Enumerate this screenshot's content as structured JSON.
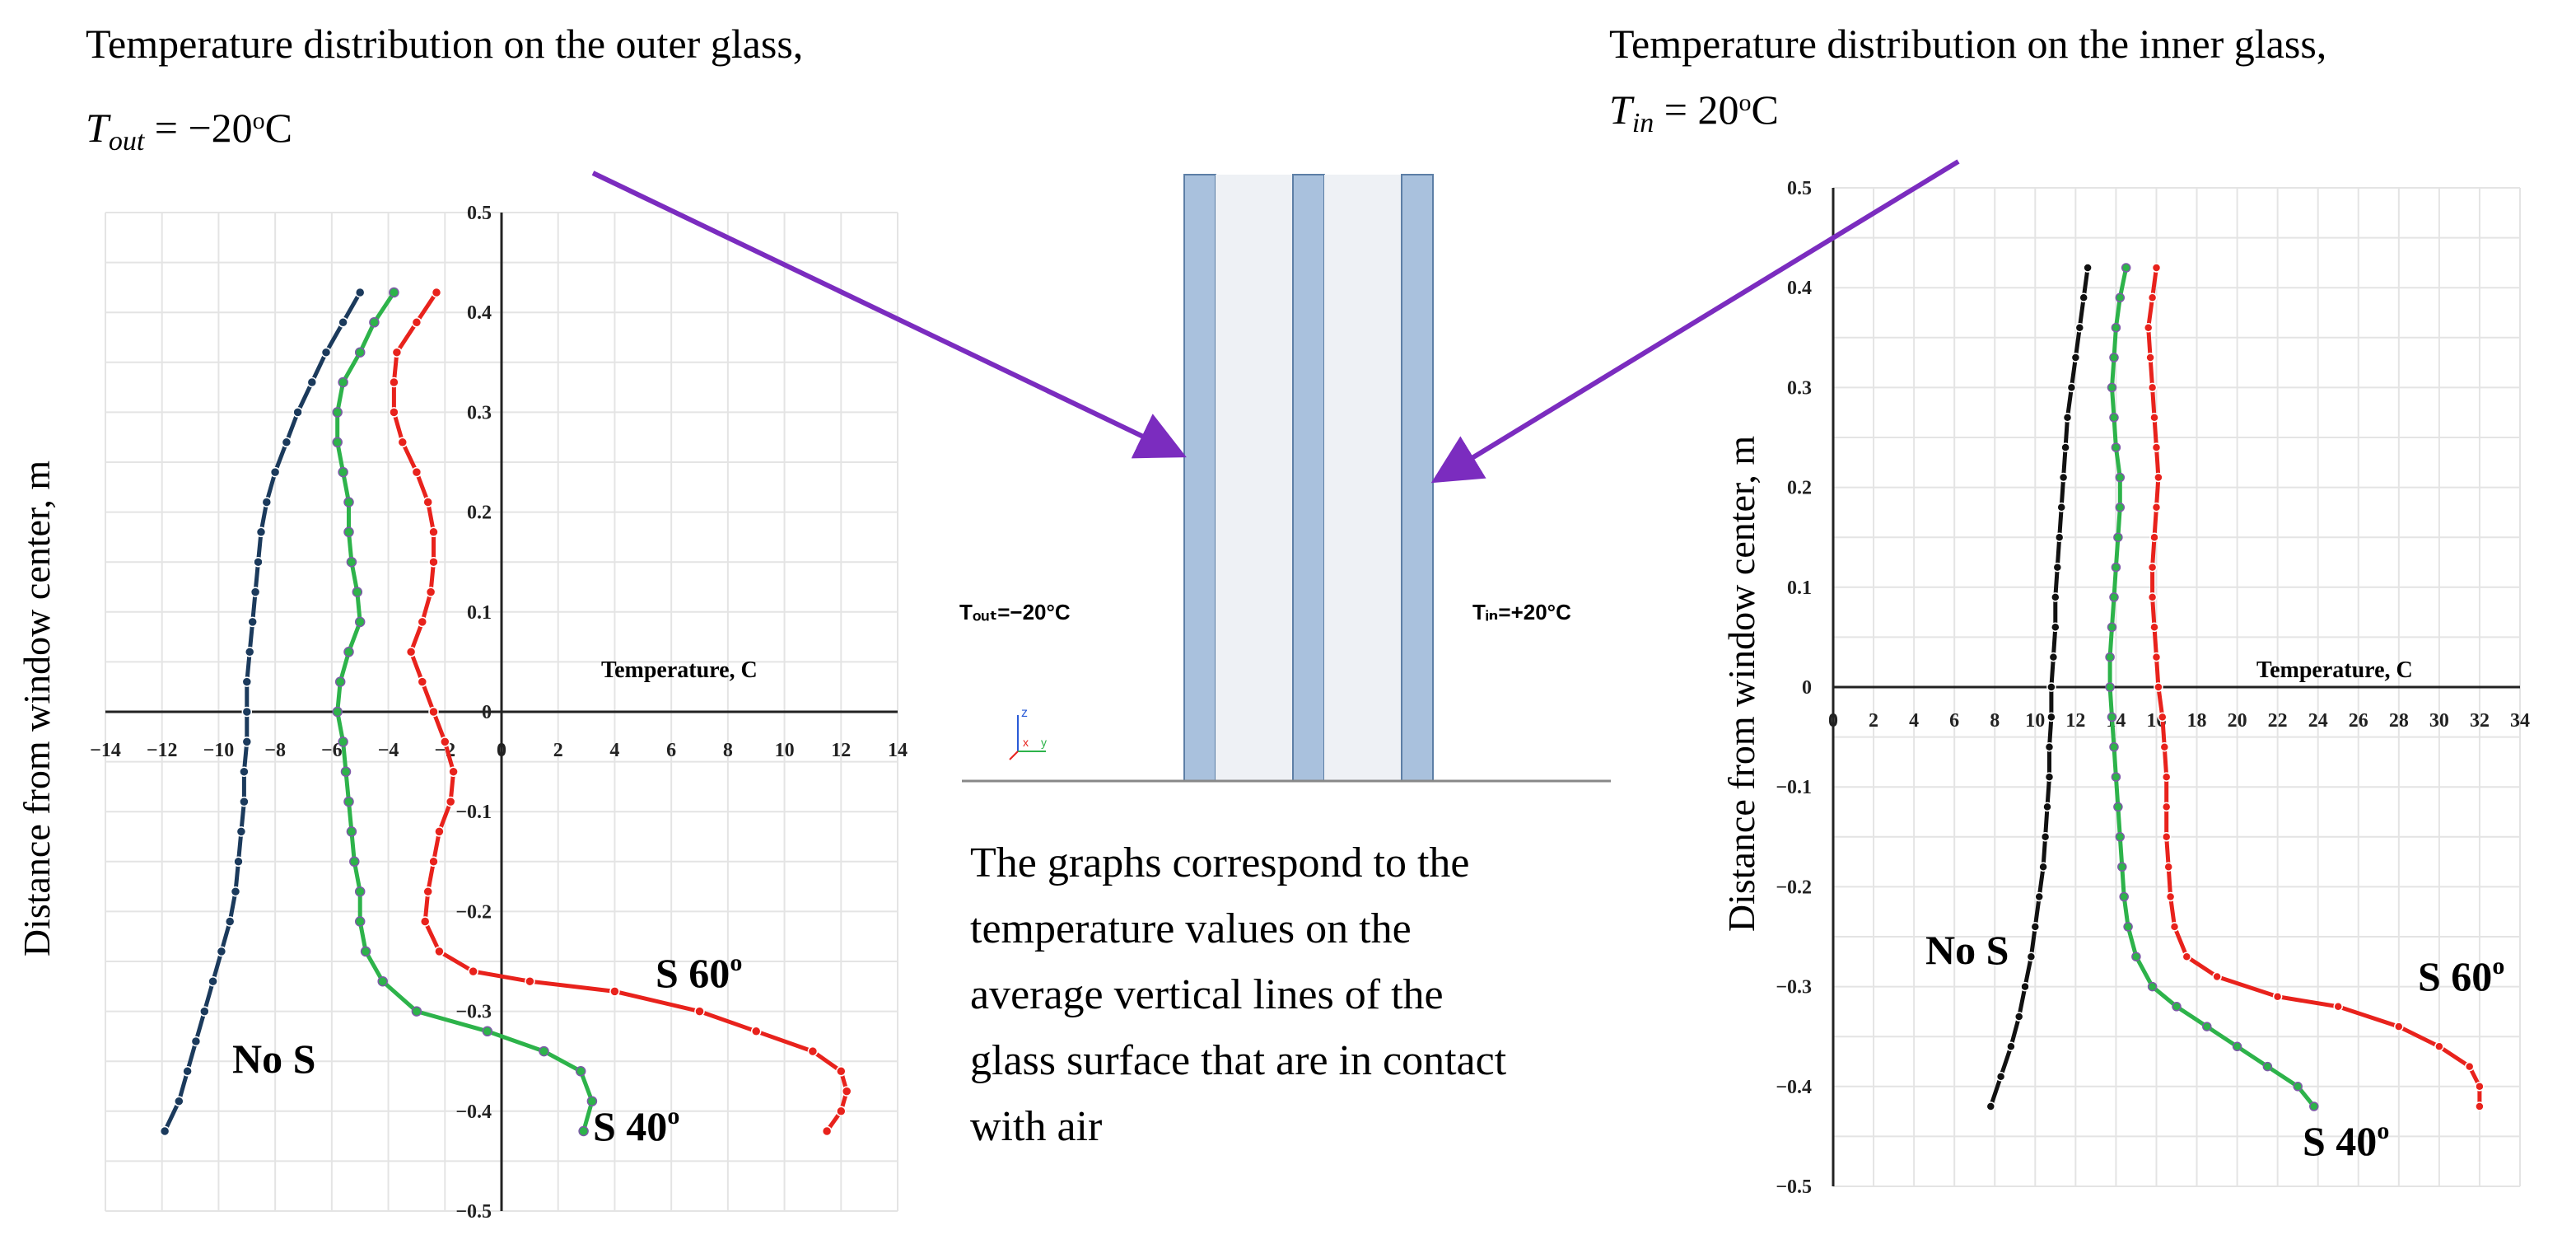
{
  "left_header": {
    "line1": "Temperature distribution on the outer glass,",
    "symbol": "T",
    "symbol_sub": "out",
    "equals": " = −20",
    "deg": "o",
    "unit": "C"
  },
  "right_header": {
    "line1": "Temperature distribution on the inner glass,",
    "symbol": "T",
    "symbol_sub": "in",
    "equals": " = 20",
    "deg": "o",
    "unit": "C"
  },
  "diagram": {
    "label_out": "Tₒᵤₜ=−20°C",
    "label_in": "Tᵢₙ=+20°C",
    "axis_z": "z",
    "axis_x": "x",
    "axis_y": "y",
    "colors": {
      "glass": "#a9c1dd",
      "glass_edge": "#5d7fa6",
      "gap": "#eef1f5",
      "arrow": "#7b2cbf"
    }
  },
  "caption": {
    "lines": [
      "The graphs correspond to the",
      "temperature values on the",
      "average vertical lines of the",
      "glass surface that are in contact",
      "with air"
    ]
  },
  "chart_data": [
    {
      "type": "line",
      "title": "",
      "xlabel": "Temperature, C",
      "ylabel": "Distance from window center, m",
      "xlim": [
        -14,
        14
      ],
      "ylim": [
        -0.5,
        0.5
      ],
      "xticks": [
        "-14",
        "-12",
        "-10",
        "-8",
        "-6",
        "-4",
        "-2",
        "0",
        "2",
        "4",
        "6",
        "8",
        "10",
        "12",
        "14"
      ],
      "yticks": [
        "0.5",
        "0.4",
        "0.3",
        "0.2",
        "0.1",
        "0",
        "-0.1",
        "-0.2",
        "-0.3",
        "-0.4",
        "-0.5"
      ],
      "grid": true,
      "series": [
        {
          "name": "No S",
          "color": "#1b3a5c",
          "points": [
            [
              -5.0,
              0.42
            ],
            [
              -5.6,
              0.39
            ],
            [
              -6.2,
              0.36
            ],
            [
              -6.7,
              0.33
            ],
            [
              -7.2,
              0.3
            ],
            [
              -7.6,
              0.27
            ],
            [
              -8.0,
              0.24
            ],
            [
              -8.3,
              0.21
            ],
            [
              -8.5,
              0.18
            ],
            [
              -8.6,
              0.15
            ],
            [
              -8.7,
              0.12
            ],
            [
              -8.8,
              0.09
            ],
            [
              -8.9,
              0.06
            ],
            [
              -9.0,
              0.03
            ],
            [
              -9.0,
              0.0
            ],
            [
              -9.0,
              -0.03
            ],
            [
              -9.1,
              -0.06
            ],
            [
              -9.1,
              -0.09
            ],
            [
              -9.2,
              -0.12
            ],
            [
              -9.3,
              -0.15
            ],
            [
              -9.4,
              -0.18
            ],
            [
              -9.6,
              -0.21
            ],
            [
              -9.9,
              -0.24
            ],
            [
              -10.2,
              -0.27
            ],
            [
              -10.5,
              -0.3
            ],
            [
              -10.8,
              -0.33
            ],
            [
              -11.1,
              -0.36
            ],
            [
              -11.4,
              -0.39
            ],
            [
              -11.9,
              -0.42
            ]
          ]
        },
        {
          "name": "S 40°",
          "color": "#2db34a",
          "points": [
            [
              -3.8,
              0.42
            ],
            [
              -4.5,
              0.39
            ],
            [
              -5.0,
              0.36
            ],
            [
              -5.6,
              0.33
            ],
            [
              -5.8,
              0.3
            ],
            [
              -5.8,
              0.27
            ],
            [
              -5.6,
              0.24
            ],
            [
              -5.4,
              0.21
            ],
            [
              -5.4,
              0.18
            ],
            [
              -5.3,
              0.15
            ],
            [
              -5.1,
              0.12
            ],
            [
              -5.0,
              0.09
            ],
            [
              -5.4,
              0.06
            ],
            [
              -5.7,
              0.03
            ],
            [
              -5.8,
              0.0
            ],
            [
              -5.6,
              -0.03
            ],
            [
              -5.5,
              -0.06
            ],
            [
              -5.4,
              -0.09
            ],
            [
              -5.3,
              -0.12
            ],
            [
              -5.2,
              -0.15
            ],
            [
              -5.0,
              -0.18
            ],
            [
              -5.0,
              -0.21
            ],
            [
              -4.8,
              -0.24
            ],
            [
              -4.2,
              -0.27
            ],
            [
              -3.0,
              -0.3
            ],
            [
              -0.5,
              -0.32
            ],
            [
              1.5,
              -0.34
            ],
            [
              2.8,
              -0.36
            ],
            [
              3.2,
              -0.39
            ],
            [
              2.9,
              -0.42
            ]
          ]
        },
        {
          "name": "S 60°",
          "color": "#e8221c",
          "points": [
            [
              -2.3,
              0.42
            ],
            [
              -3.0,
              0.39
            ],
            [
              -3.7,
              0.36
            ],
            [
              -3.8,
              0.33
            ],
            [
              -3.8,
              0.3
            ],
            [
              -3.5,
              0.27
            ],
            [
              -3.0,
              0.24
            ],
            [
              -2.6,
              0.21
            ],
            [
              -2.4,
              0.18
            ],
            [
              -2.4,
              0.15
            ],
            [
              -2.5,
              0.12
            ],
            [
              -2.8,
              0.09
            ],
            [
              -3.2,
              0.06
            ],
            [
              -2.8,
              0.03
            ],
            [
              -2.4,
              0.0
            ],
            [
              -2.0,
              -0.03
            ],
            [
              -1.7,
              -0.06
            ],
            [
              -1.8,
              -0.09
            ],
            [
              -2.2,
              -0.12
            ],
            [
              -2.4,
              -0.15
            ],
            [
              -2.6,
              -0.18
            ],
            [
              -2.7,
              -0.21
            ],
            [
              -2.2,
              -0.24
            ],
            [
              -1.0,
              -0.26
            ],
            [
              1.0,
              -0.27
            ],
            [
              4.0,
              -0.28
            ],
            [
              7.0,
              -0.3
            ],
            [
              9.0,
              -0.32
            ],
            [
              11.0,
              -0.34
            ],
            [
              12.0,
              -0.36
            ],
            [
              12.2,
              -0.38
            ],
            [
              12.0,
              -0.4
            ],
            [
              11.5,
              -0.42
            ]
          ]
        }
      ],
      "annotations": [
        "No S",
        "S 40",
        "S 60"
      ]
    },
    {
      "type": "line",
      "title": "",
      "xlabel": "Temperature, C",
      "ylabel": "Distance from window center, m",
      "xlim": [
        0,
        34
      ],
      "ylim": [
        -0.5,
        0.5
      ],
      "xticks": [
        "0",
        "2",
        "4",
        "6",
        "8",
        "10",
        "12",
        "14",
        "16",
        "18",
        "20",
        "22",
        "24",
        "26",
        "28",
        "30",
        "32",
        "34"
      ],
      "yticks": [
        "0.5",
        "0.4",
        "0.3",
        "0.2",
        "0.1",
        "0",
        "-0.1",
        "-0.2",
        "-0.3",
        "-0.4",
        "-0.5"
      ],
      "grid": true,
      "series": [
        {
          "name": "No S",
          "color": "#111111",
          "points": [
            [
              12.6,
              0.42
            ],
            [
              12.4,
              0.39
            ],
            [
              12.2,
              0.36
            ],
            [
              12.0,
              0.33
            ],
            [
              11.8,
              0.3
            ],
            [
              11.6,
              0.27
            ],
            [
              11.5,
              0.24
            ],
            [
              11.4,
              0.21
            ],
            [
              11.3,
              0.18
            ],
            [
              11.2,
              0.15
            ],
            [
              11.1,
              0.12
            ],
            [
              11.0,
              0.09
            ],
            [
              11.0,
              0.06
            ],
            [
              10.9,
              0.03
            ],
            [
              10.8,
              0.0
            ],
            [
              10.8,
              -0.03
            ],
            [
              10.7,
              -0.06
            ],
            [
              10.7,
              -0.09
            ],
            [
              10.6,
              -0.12
            ],
            [
              10.5,
              -0.15
            ],
            [
              10.4,
              -0.18
            ],
            [
              10.2,
              -0.21
            ],
            [
              10.0,
              -0.24
            ],
            [
              9.8,
              -0.27
            ],
            [
              9.5,
              -0.3
            ],
            [
              9.2,
              -0.33
            ],
            [
              8.8,
              -0.36
            ],
            [
              8.3,
              -0.39
            ],
            [
              7.8,
              -0.42
            ]
          ]
        },
        {
          "name": "S 40°",
          "color": "#2db34a",
          "points": [
            [
              14.5,
              0.42
            ],
            [
              14.2,
              0.39
            ],
            [
              14.0,
              0.36
            ],
            [
              13.9,
              0.33
            ],
            [
              13.8,
              0.3
            ],
            [
              13.9,
              0.27
            ],
            [
              14.0,
              0.24
            ],
            [
              14.2,
              0.21
            ],
            [
              14.2,
              0.18
            ],
            [
              14.1,
              0.15
            ],
            [
              14.0,
              0.12
            ],
            [
              13.9,
              0.09
            ],
            [
              13.8,
              0.06
            ],
            [
              13.7,
              0.03
            ],
            [
              13.7,
              0.0
            ],
            [
              13.8,
              -0.03
            ],
            [
              13.9,
              -0.06
            ],
            [
              14.0,
              -0.09
            ],
            [
              14.1,
              -0.12
            ],
            [
              14.2,
              -0.15
            ],
            [
              14.3,
              -0.18
            ],
            [
              14.4,
              -0.21
            ],
            [
              14.6,
              -0.24
            ],
            [
              15.0,
              -0.27
            ],
            [
              15.8,
              -0.3
            ],
            [
              17.0,
              -0.32
            ],
            [
              18.5,
              -0.34
            ],
            [
              20.0,
              -0.36
            ],
            [
              21.5,
              -0.38
            ],
            [
              23.0,
              -0.4
            ],
            [
              23.8,
              -0.42
            ]
          ]
        },
        {
          "name": "S 60°",
          "color": "#e8221c",
          "points": [
            [
              16.0,
              0.42
            ],
            [
              15.8,
              0.39
            ],
            [
              15.6,
              0.36
            ],
            [
              15.7,
              0.33
            ],
            [
              15.8,
              0.3
            ],
            [
              15.9,
              0.27
            ],
            [
              16.0,
              0.24
            ],
            [
              16.1,
              0.21
            ],
            [
              16.0,
              0.18
            ],
            [
              15.9,
              0.15
            ],
            [
              15.8,
              0.12
            ],
            [
              15.8,
              0.09
            ],
            [
              15.9,
              0.06
            ],
            [
              16.0,
              0.03
            ],
            [
              16.1,
              0.0
            ],
            [
              16.3,
              -0.03
            ],
            [
              16.4,
              -0.06
            ],
            [
              16.5,
              -0.09
            ],
            [
              16.5,
              -0.12
            ],
            [
              16.5,
              -0.15
            ],
            [
              16.6,
              -0.18
            ],
            [
              16.7,
              -0.21
            ],
            [
              16.9,
              -0.24
            ],
            [
              17.5,
              -0.27
            ],
            [
              19.0,
              -0.29
            ],
            [
              22.0,
              -0.31
            ],
            [
              25.0,
              -0.32
            ],
            [
              28.0,
              -0.34
            ],
            [
              30.0,
              -0.36
            ],
            [
              31.5,
              -0.38
            ],
            [
              32.0,
              -0.4
            ],
            [
              32.0,
              -0.42
            ]
          ]
        }
      ],
      "annotations": [
        "No S",
        "S 40",
        "S 60"
      ]
    }
  ]
}
